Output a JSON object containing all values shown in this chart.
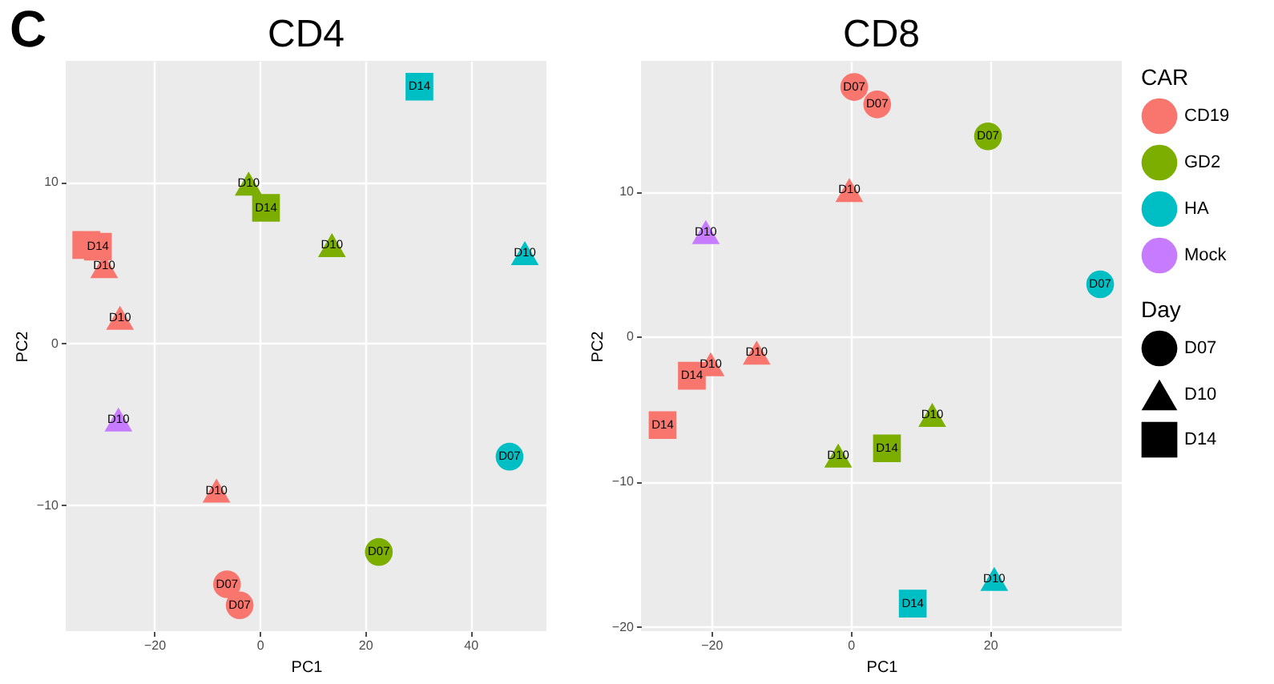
{
  "chart_data": [
    {
      "type": "scatter",
      "title": "CD4",
      "xlabel": "PC1",
      "ylabel": "PC2",
      "annotations": [
        "C"
      ],
      "xlim": [
        -36.8,
        54.4
      ],
      "ylim": [
        -17.8,
        17.5
      ],
      "xticks": [
        -20,
        0,
        20,
        40
      ],
      "yticks": [
        -10,
        0,
        10
      ],
      "grid": true,
      "legend": "right",
      "series": [
        {
          "name": "CD19",
          "color": "#f8766d",
          "marker": [
            "circle",
            "circle",
            "triangle",
            "triangle",
            "triangle",
            "square",
            "square"
          ],
          "x": [
            -6.2,
            -3.8,
            -29.5,
            -26.5,
            -8.2,
            -32.9,
            -30.7
          ],
          "values": [
            -14.9,
            -16.2,
            4.8,
            1.6,
            -9.1,
            6.1,
            6.0
          ],
          "value_labels": [
            "D07",
            "D07",
            "D10",
            "D10",
            "D10",
            null,
            "D14"
          ]
        },
        {
          "name": "GD2",
          "color": "#7cae00",
          "marker": [
            "circle",
            "triangle",
            "triangle",
            "square"
          ],
          "x": [
            22.6,
            -2.1,
            13.7,
            1.2
          ],
          "values": [
            -12.9,
            9.9,
            6.1,
            8.4
          ],
          "value_labels": [
            "D07",
            "D10",
            "D10",
            "D14"
          ]
        },
        {
          "name": "HA",
          "color": "#00bfc4",
          "marker": [
            "circle",
            "triangle",
            "square"
          ],
          "x": [
            47.4,
            50.3,
            30.3
          ],
          "values": [
            -7.0,
            5.6,
            15.9
          ],
          "value_labels": [
            "D07",
            "D10",
            "D14"
          ]
        },
        {
          "name": "Mock",
          "color": "#c77cff",
          "marker": [
            "triangle"
          ],
          "x": [
            -26.8
          ],
          "values": [
            -4.7
          ],
          "value_labels": [
            "D10"
          ]
        }
      ]
    },
    {
      "type": "scatter",
      "title": "CD8",
      "xlabel": "PC1",
      "ylabel": "PC2",
      "xlim": [
        -30.1,
        38.9
      ],
      "ylim": [
        -20.3,
        19.0
      ],
      "xticks": [
        -20,
        0,
        20
      ],
      "yticks": [
        -20,
        -10,
        0,
        10
      ],
      "grid": true,
      "legend": "right",
      "legend_title": [
        "CAR",
        "Day"
      ],
      "series": [
        {
          "name": "CD19",
          "color": "#f8766d",
          "marker": [
            "circle",
            "circle",
            "triangle",
            "triangle",
            "triangle",
            "square",
            "square"
          ],
          "x": [
            0.5,
            3.8,
            -0.2,
            -13.5,
            -20.1,
            -22.8,
            -27.0
          ],
          "values": [
            17.2,
            16.0,
            10.1,
            -1.1,
            -1.9,
            -2.7,
            -6.1
          ],
          "value_labels": [
            "D07",
            "D07",
            "D10",
            "D10",
            "D10",
            "D14",
            "D14"
          ]
        },
        {
          "name": "GD2",
          "color": "#7cae00",
          "marker": [
            "circle",
            "triangle",
            "triangle",
            "square"
          ],
          "x": [
            19.7,
            11.7,
            -1.8,
            5.2
          ],
          "values": [
            13.8,
            -5.4,
            -8.2,
            -7.7
          ],
          "value_labels": [
            "D07",
            "D10",
            "D10",
            "D14"
          ]
        },
        {
          "name": "HA",
          "color": "#00bfc4",
          "marker": [
            "circle",
            "triangle",
            "square"
          ],
          "x": [
            35.8,
            20.6,
            8.9
          ],
          "values": [
            3.6,
            -16.7,
            -18.4
          ],
          "value_labels": [
            "D07",
            "D10",
            "D14"
          ]
        },
        {
          "name": "Mock",
          "color": "#c77cff",
          "marker": [
            "triangle"
          ],
          "x": [
            -20.8
          ],
          "values": [
            7.2
          ],
          "value_labels": [
            "D10"
          ]
        }
      ]
    }
  ]
}
